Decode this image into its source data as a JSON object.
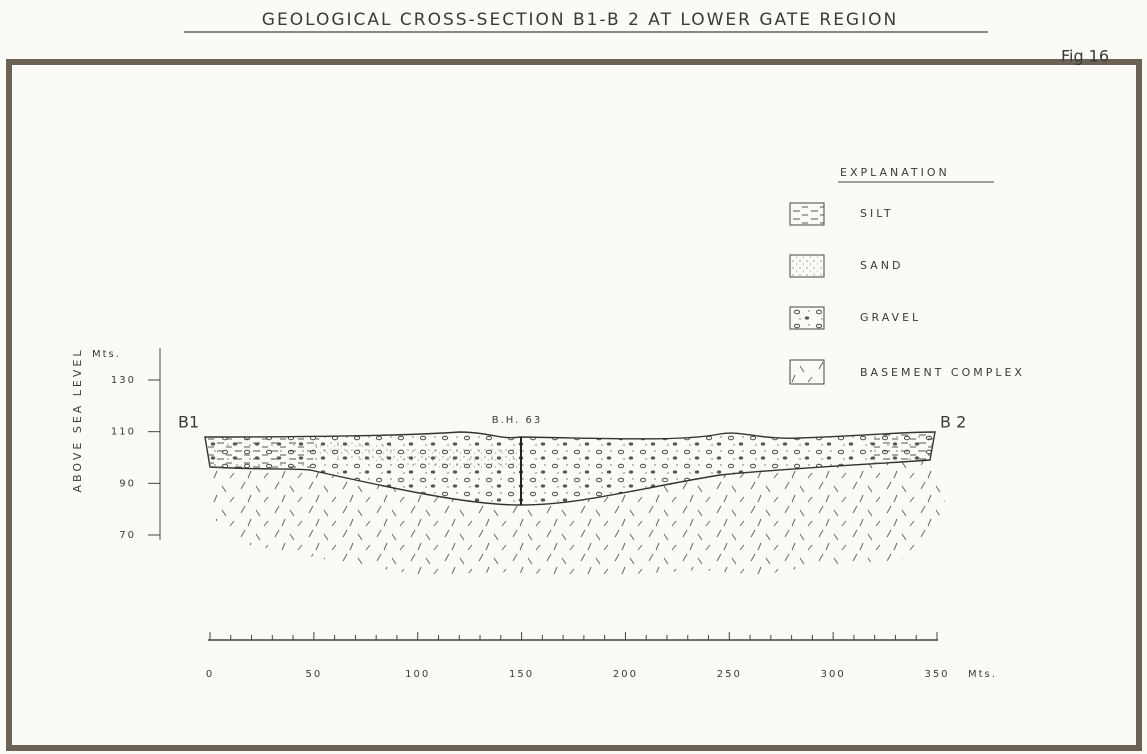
{
  "title": "GEOLOGICAL CROSS-SECTION B1-B 2 AT LOWER GATE REGION",
  "figure_label": "Fig 16",
  "legend": {
    "title": "EXPLANATION",
    "items": [
      "SILT",
      "SAND",
      "GRAVEL",
      "BASEMENT COMPLEX"
    ]
  },
  "y_axis": {
    "label": "ABOVE SEA LEVEL",
    "unit": "Mts.",
    "ticks": [
      130,
      110,
      90,
      70
    ]
  },
  "x_axis": {
    "unit": "Mts.",
    "ticks": [
      0,
      50,
      100,
      150,
      200,
      250,
      300,
      350
    ]
  },
  "section": {
    "start_label": "B1",
    "end_label": "B 2",
    "borehole": "B.H. 63"
  }
}
